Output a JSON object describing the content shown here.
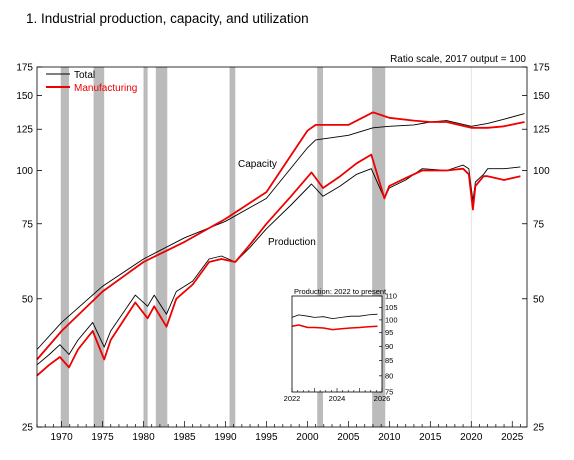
{
  "page": {
    "title": "1.  Industrial production, capacity, and utilization"
  },
  "chart_data": [
    {
      "type": "line",
      "subtitle": "Ratio scale, 2017 output = 100",
      "scale": "log",
      "xlim": [
        1967,
        2026.8
      ],
      "ylim": [
        25,
        175
      ],
      "x_ticks": [
        "1970",
        "1975",
        "1980",
        "1985",
        "1990",
        "1995",
        "2000",
        "2005",
        "2010",
        "2015",
        "2020",
        "2025"
      ],
      "y_ticks": [
        "25",
        "50",
        "75",
        "100",
        "125",
        "150",
        "175"
      ],
      "legend": {
        "placement": "top-left",
        "entries": [
          "Total",
          "Manufacturing"
        ]
      },
      "annotations": [
        "Capacity",
        "Production"
      ],
      "recessions": [
        [
          1969.9,
          1970.9
        ],
        [
          1973.9,
          1975.2
        ],
        [
          1980.0,
          1980.5
        ],
        [
          1981.5,
          1982.9
        ],
        [
          1990.5,
          1991.2
        ],
        [
          2001.2,
          2001.9
        ],
        [
          2007.9,
          2009.5
        ]
      ],
      "colors": {
        "total": "#000000",
        "manufacturing": "#ee0000",
        "recession": "#bbbbbb"
      },
      "series": [
        {
          "name": "Total",
          "kind": "capacity",
          "x": [
            1967,
            1970,
            1975,
            1980,
            1985,
            1990,
            1995,
            2000,
            2001,
            2005,
            2008,
            2010,
            2013,
            2015,
            2017,
            2020,
            2022,
            2024,
            2026.5
          ],
          "y": [
            38,
            44,
            53.5,
            62,
            69.5,
            76,
            86,
            113,
            118,
            121,
            126,
            127,
            128,
            130,
            131,
            127,
            129,
            132,
            136
          ]
        },
        {
          "name": "Manufacturing",
          "kind": "capacity",
          "x": [
            1967,
            1970,
            1975,
            1980,
            1985,
            1990,
            1995,
            2000,
            2001,
            2005,
            2008,
            2010,
            2013,
            2015,
            2017,
            2020,
            2022,
            2024,
            2026.5
          ],
          "y": [
            36,
            42,
            52,
            61,
            68,
            77,
            89,
            124,
            128,
            128,
            137,
            133,
            131,
            130,
            130,
            126,
            126,
            127,
            130
          ]
        },
        {
          "name": "Total",
          "kind": "production",
          "x": [
            1967,
            1968.5,
            1969.8,
            1970.9,
            1972,
            1973.8,
            1975.2,
            1976,
            1979,
            1980.5,
            1981.3,
            1982.8,
            1984,
            1986,
            1988,
            1989.5,
            1991.2,
            1993,
            1995,
            1998,
            2000.5,
            2001.9,
            2004,
            2006,
            2007.8,
            2009.4,
            2010,
            2012,
            2014,
            2017,
            2019,
            2019.7,
            2020.2,
            2020.5,
            2021.5,
            2022,
            2024,
            2026
          ],
          "y": [
            35,
            37,
            39,
            37,
            40,
            44,
            38.5,
            42,
            51,
            48,
            51,
            46,
            52,
            55,
            62,
            63,
            61,
            66,
            73,
            83,
            93,
            87,
            92,
            98,
            101,
            86,
            91,
            95,
            101,
            100,
            103,
            101,
            85,
            94,
            98,
            101,
            101,
            102
          ]
        },
        {
          "name": "Manufacturing",
          "kind": "production",
          "x": [
            1967,
            1968.5,
            1969.8,
            1970.9,
            1972,
            1973.8,
            1975.2,
            1976,
            1979,
            1980.5,
            1981.3,
            1982.8,
            1984,
            1986,
            1988,
            1989.5,
            1991.2,
            1993,
            1995,
            1998,
            2000.5,
            2001.9,
            2004,
            2006,
            2007.8,
            2009.4,
            2010,
            2012,
            2014,
            2017,
            2019,
            2019.7,
            2020.2,
            2020.5,
            2021.5,
            2022,
            2024,
            2026
          ],
          "y": [
            33,
            35,
            36.5,
            34.5,
            38,
            42,
            36,
            40,
            49,
            45,
            48,
            43,
            50,
            54,
            61,
            62,
            61,
            67,
            75,
            87,
            99,
            91,
            97,
            104,
            109,
            86,
            92,
            96,
            100,
            100,
            101,
            98,
            81,
            92,
            97,
            97,
            95,
            97
          ]
        }
      ]
    },
    {
      "type": "line",
      "title": "Production: 2022 to present",
      "scale": "log",
      "xlim": [
        2022,
        2026
      ],
      "ylim": [
        75,
        110
      ],
      "x_ticks": [
        "2022",
        "2024",
        "2026"
      ],
      "y_ticks": [
        "75",
        "80",
        "85",
        "90",
        "95",
        "100",
        "105",
        "110"
      ],
      "series": [
        {
          "name": "Total",
          "x": [
            2022,
            2022.3,
            2022.7,
            2023,
            2023.4,
            2023.8,
            2024.2,
            2024.6,
            2025,
            2025.4,
            2025.8
          ],
          "y": [
            101,
            102,
            101.5,
            101,
            101.3,
            100.5,
            101,
            101.5,
            101.5,
            102,
            102.3
          ]
        },
        {
          "name": "Manufacturing",
          "x": [
            2022,
            2022.3,
            2022.7,
            2023,
            2023.4,
            2023.8,
            2024.2,
            2024.6,
            2025,
            2025.4,
            2025.8
          ],
          "y": [
            97.5,
            98,
            97,
            97,
            96.8,
            96.2,
            96.5,
            96.8,
            97,
            97.3,
            97.5
          ]
        }
      ]
    }
  ]
}
